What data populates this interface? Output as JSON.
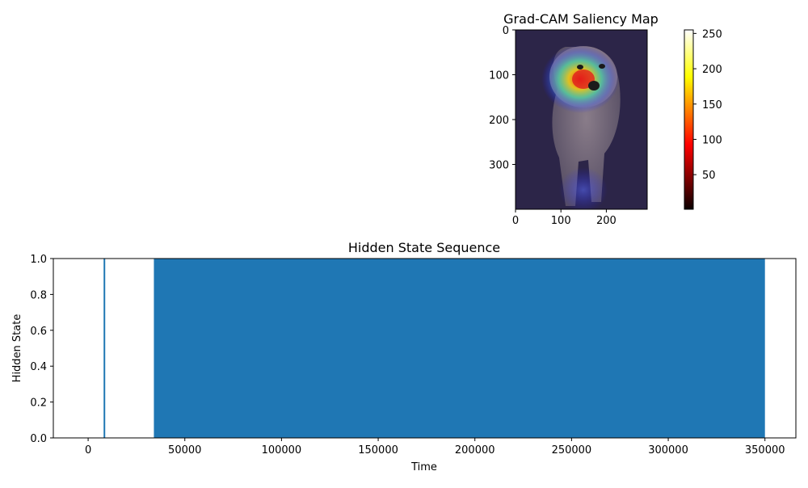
{
  "chart_data": [
    {
      "type": "heatmap",
      "title": "Grad-CAM Saliency Map",
      "xlabel": "",
      "ylabel": "",
      "xlim": [
        0,
        290
      ],
      "ylim": [
        400,
        0
      ],
      "xticks": [
        0,
        100,
        200
      ],
      "yticks": [
        0,
        100,
        200,
        300
      ],
      "colorbar": {
        "colormap": "hot",
        "range": [
          1,
          255
        ],
        "ticks": [
          50,
          100,
          150,
          200,
          250
        ]
      },
      "hotspot": {
        "x": 145,
        "y": 100,
        "peak": 255
      }
    },
    {
      "type": "area",
      "title": "Hidden State Sequence",
      "xlabel": "Time",
      "ylabel": "Hidden State",
      "xlim": [
        -18000,
        366000
      ],
      "ylim": [
        0,
        1
      ],
      "xticks": [
        0,
        50000,
        100000,
        150000,
        200000,
        250000,
        300000,
        350000
      ],
      "yticks": [
        0.0,
        0.2,
        0.4,
        0.6,
        0.8,
        1.0
      ],
      "ytick_labels": [
        "0.0",
        "0.2",
        "0.4",
        "0.6",
        "0.8",
        "1.0"
      ],
      "series": [
        {
          "segments": [
            [
              8000,
              8800,
              1
            ],
            [
              34000,
              350000,
              1
            ]
          ]
        }
      ],
      "color": "#1f77b4",
      "grid": false
    }
  ]
}
